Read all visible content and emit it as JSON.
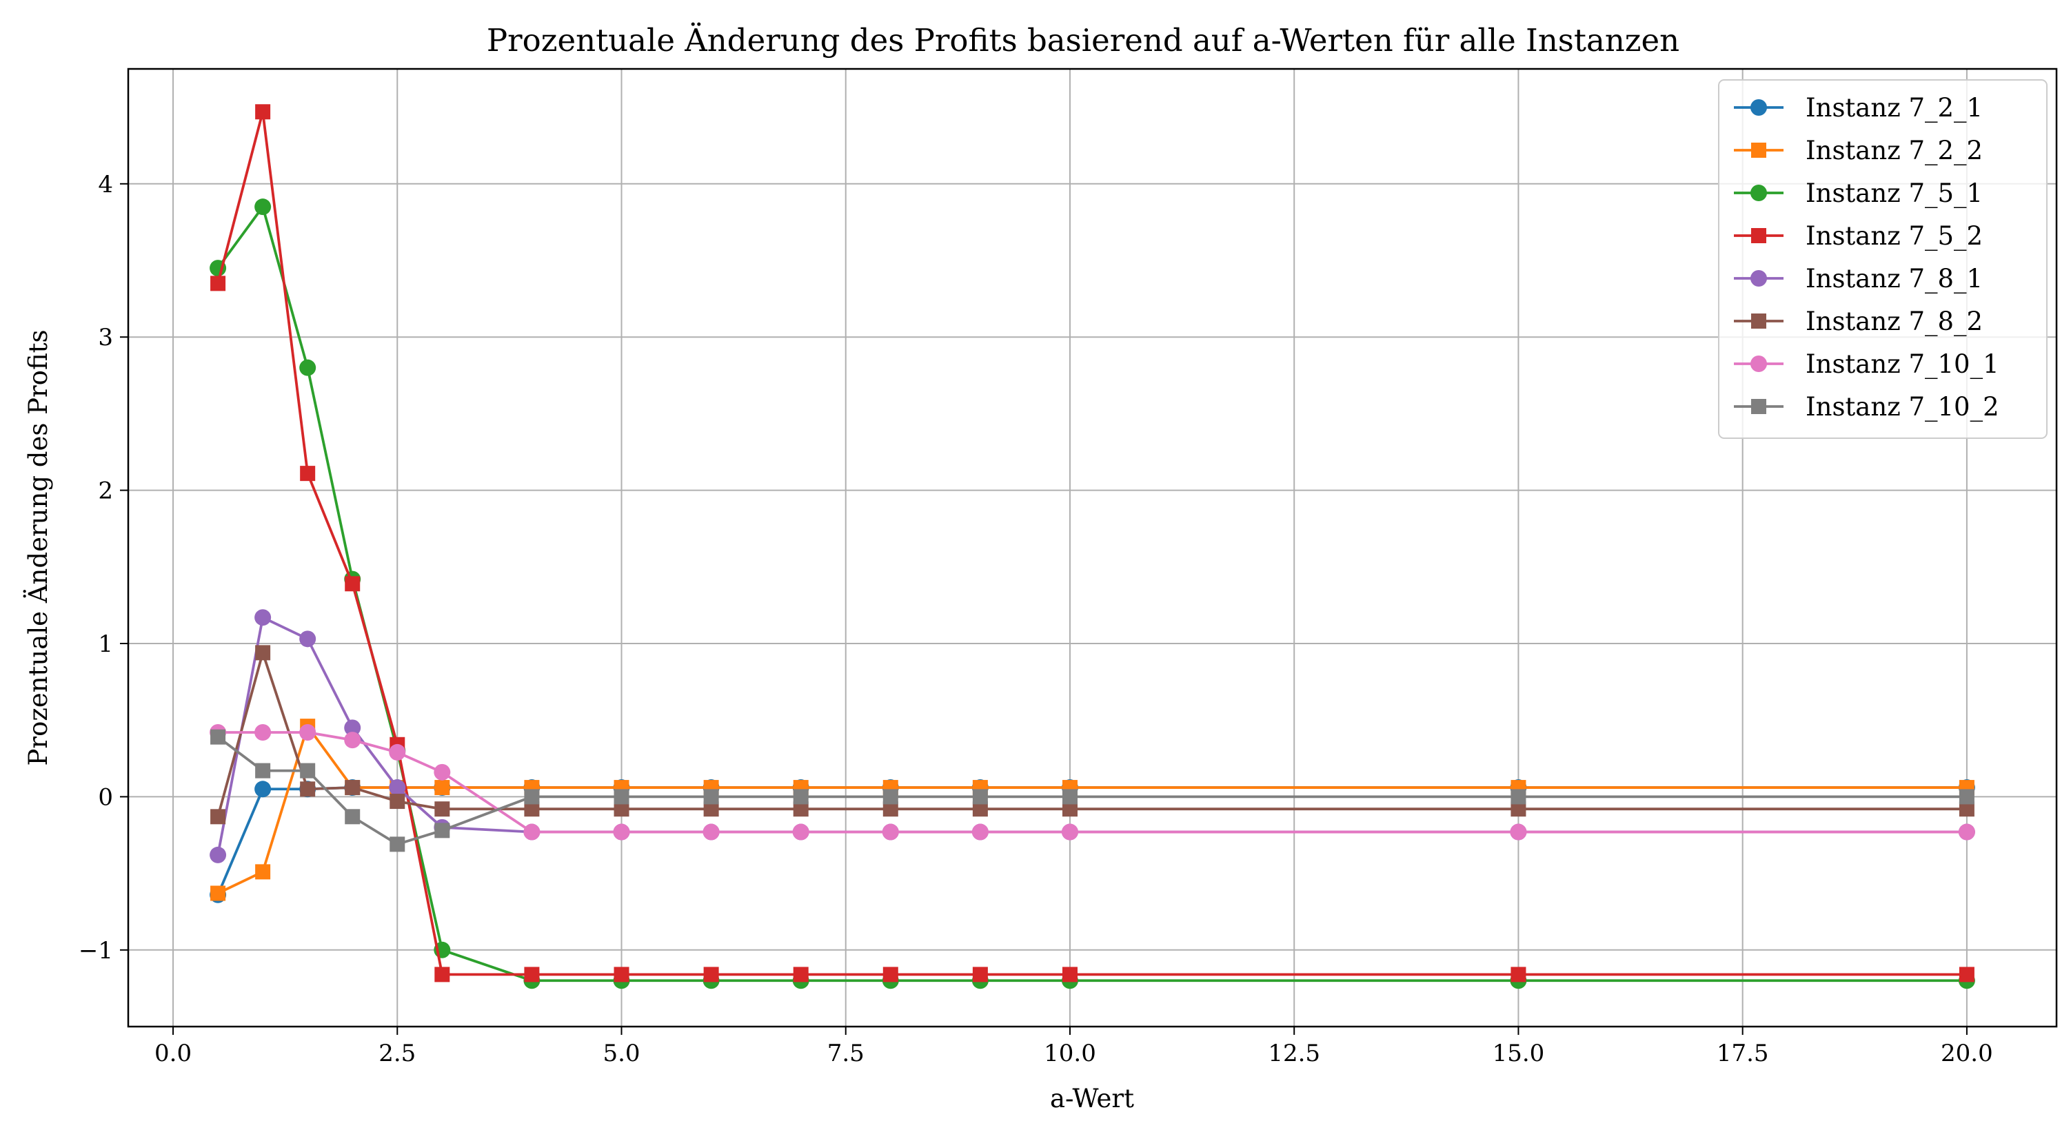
{
  "chart_data": {
    "type": "line",
    "title": "Prozentuale Änderung des Profits basierend auf a-Werten für alle Instanzen",
    "xlabel": "a-Wert",
    "ylabel": "Prozentuale Änderung des Profits",
    "xlim": [
      -0.5,
      21.0
    ],
    "ylim": [
      -1.5,
      4.75
    ],
    "xticks": [
      0.0,
      2.5,
      5.0,
      7.5,
      10.0,
      12.5,
      15.0,
      17.5,
      20.0
    ],
    "xtick_labels": [
      "0.0",
      "2.5",
      "5.0",
      "7.5",
      "10.0",
      "12.5",
      "15.0",
      "17.5",
      "20.0"
    ],
    "yticks": [
      -1,
      0,
      1,
      2,
      3,
      4
    ],
    "ytick_labels": [
      "−1",
      "0",
      "1",
      "2",
      "3",
      "4"
    ],
    "grid": true,
    "legend_position": "top-right",
    "x": [
      0.5,
      1,
      1.5,
      2,
      2.5,
      3,
      4,
      5,
      6,
      7,
      8,
      9,
      10,
      15,
      20
    ],
    "series": [
      {
        "name": "Instanz 7_2_1",
        "color": "#1f77b4",
        "marker": "circle",
        "values": [
          -0.64,
          0.05,
          0.05,
          0.06,
          0.06,
          0.06,
          0.06,
          0.06,
          0.06,
          0.06,
          0.06,
          0.06,
          0.06,
          0.06,
          0.06
        ]
      },
      {
        "name": "Instanz 7_2_2",
        "color": "#ff7f0e",
        "marker": "square",
        "values": [
          -0.63,
          -0.49,
          0.46,
          0.06,
          0.06,
          0.06,
          0.06,
          0.06,
          0.06,
          0.06,
          0.06,
          0.06,
          0.06,
          0.06,
          0.06
        ]
      },
      {
        "name": "Instanz 7_5_1",
        "color": "#2ca02c",
        "marker": "circle",
        "values": [
          3.45,
          3.85,
          2.8,
          1.42,
          0.3,
          -1.0,
          -1.2,
          -1.2,
          -1.2,
          -1.2,
          -1.2,
          -1.2,
          -1.2,
          -1.2,
          -1.2
        ]
      },
      {
        "name": "Instanz 7_5_2",
        "color": "#d62728",
        "marker": "square",
        "values": [
          3.35,
          4.47,
          2.11,
          1.39,
          0.34,
          -1.16,
          -1.16,
          -1.16,
          -1.16,
          -1.16,
          -1.16,
          -1.16,
          -1.16,
          -1.16,
          -1.16
        ]
      },
      {
        "name": "Instanz 7_8_1",
        "color": "#9467bd",
        "marker": "circle",
        "values": [
          -0.38,
          1.17,
          1.03,
          0.45,
          0.06,
          -0.2,
          -0.23,
          -0.23,
          -0.23,
          -0.23,
          -0.23,
          -0.23,
          -0.23,
          -0.23,
          -0.23
        ]
      },
      {
        "name": "Instanz 7_8_2",
        "color": "#8c564b",
        "marker": "square",
        "values": [
          -0.13,
          0.94,
          0.05,
          0.06,
          -0.03,
          -0.08,
          -0.08,
          -0.08,
          -0.08,
          -0.08,
          -0.08,
          -0.08,
          -0.08,
          -0.08,
          -0.08
        ]
      },
      {
        "name": "Instanz 7_10_1",
        "color": "#e377c2",
        "marker": "circle",
        "values": [
          0.42,
          0.42,
          0.42,
          0.37,
          0.29,
          0.16,
          -0.23,
          -0.23,
          -0.23,
          -0.23,
          -0.23,
          -0.23,
          -0.23,
          -0.23,
          -0.23
        ]
      },
      {
        "name": "Instanz 7_10_2",
        "color": "#7f7f7f",
        "marker": "square",
        "values": [
          0.39,
          0.17,
          0.17,
          -0.13,
          -0.31,
          -0.22,
          0.0,
          0.0,
          0.0,
          0.0,
          0.0,
          0.0,
          0.0,
          0.0,
          0.0
        ]
      }
    ]
  }
}
